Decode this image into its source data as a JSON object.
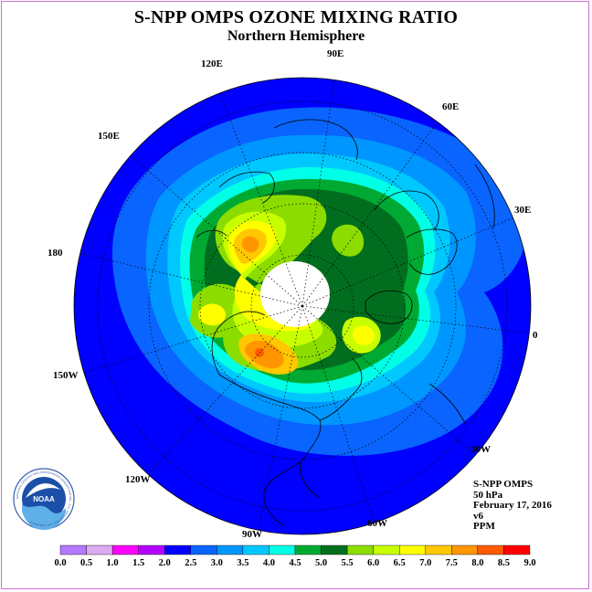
{
  "title": "S-NPP OMPS OZONE MIXING RATIO",
  "subtitle": "Northern Hemisphere",
  "longitude_labels": [
    "90E",
    "60E",
    "30E",
    "0",
    "30W",
    "60W",
    "90W",
    "120W",
    "150W",
    "180",
    "150E",
    "120E"
  ],
  "info": {
    "instrument": "S-NPP OMPS",
    "level": "50 hPa",
    "date": "February 17, 2016",
    "version": "v6",
    "units": "PPM"
  },
  "logo": {
    "text": "NOAA",
    "ring_text": "NATIONAL OCEANIC AND ATMOSPHERIC ADMINISTRATION · U.S. DEPARTMENT OF COMMERCE"
  },
  "colorbar": {
    "ticks": [
      "0.0",
      "0.5",
      "1.0",
      "1.5",
      "2.0",
      "2.5",
      "3.0",
      "3.5",
      "4.0",
      "4.5",
      "5.0",
      "5.5",
      "6.0",
      "6.5",
      "7.0",
      "7.5",
      "8.0",
      "8.5",
      "9.0"
    ],
    "colors": [
      "#b478ff",
      "#dcaaf0",
      "#ff00ff",
      "#b400ff",
      "#0000ff",
      "#0a64ff",
      "#0096ff",
      "#00c8ff",
      "#00ffe6",
      "#00aa32",
      "#006e1e",
      "#8cdc00",
      "#c8ff00",
      "#ffff00",
      "#ffc800",
      "#ff9600",
      "#ff5a00",
      "#ff0000",
      "#8c5a3c"
    ]
  }
}
